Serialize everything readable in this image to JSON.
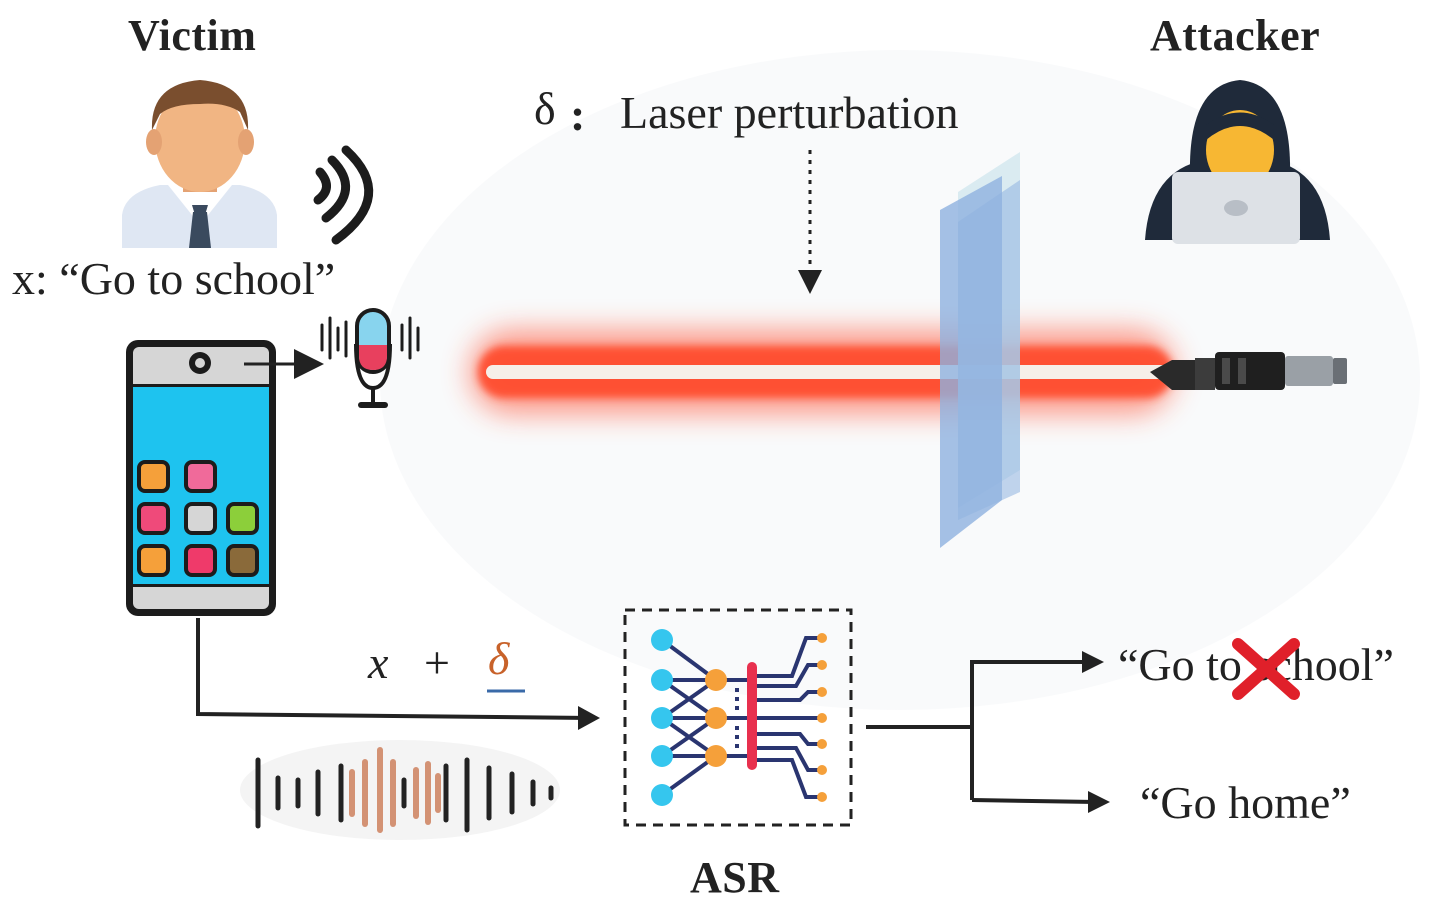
{
  "labels": {
    "victim": "Victim",
    "attacker": "Attacker",
    "perturbation_symbol": "δ",
    "perturbation_colon": ":",
    "perturbation_label": "Laser perturbation",
    "victim_utterance": "x: “Go to school”",
    "input_x": "x",
    "input_plus": "+",
    "input_delta": "δ",
    "asr": "ASR",
    "output_rejected": "“Go to school”",
    "output_target": "“Go home”"
  },
  "colors": {
    "laser_glow": "#ff4a2a",
    "laser_core": "#f6efe8",
    "filter_plate": "#8fb2e0",
    "phone_screen": "#1ec3ef",
    "asr_input_node": "#35c6ee",
    "asr_hidden_node": "#f5a03a",
    "asr_output_node": "#f5a03a",
    "asr_edge": "#2a3570",
    "asr_bar": "#e8304e",
    "reject_cross": "#e0202a",
    "delta_accent": "#c8622a"
  },
  "icons": {
    "victim": "person-icon",
    "attacker": "hacker-icon",
    "sound": "sound-waves-icon",
    "microphone": "microphone-icon",
    "phone": "smartphone-icon",
    "laser": "laser-beam-icon",
    "filter": "filter-plate-icon",
    "waveform": "audio-waveform-icon",
    "network": "neural-network-icon",
    "reject": "cross-icon"
  }
}
